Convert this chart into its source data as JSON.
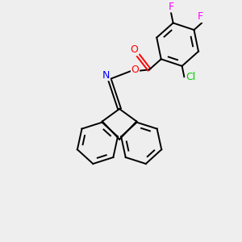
{
  "background_color": "#eeeeee",
  "atom_colors": {
    "C": "#000000",
    "O": "#ff0000",
    "N": "#0000ff",
    "F": "#ff00ff",
    "Cl": "#00cc00"
  },
  "figsize": [
    3.0,
    3.0
  ],
  "dpi": 100
}
